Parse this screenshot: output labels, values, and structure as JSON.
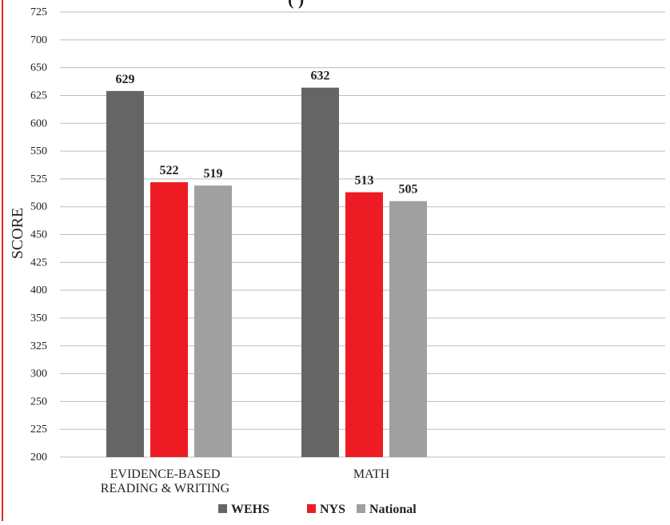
{
  "chart_data": {
    "type": "bar",
    "title_partial": "(                )",
    "ylabel": "SCORE",
    "xlabel": "",
    "y_tick_labels": [
      "200",
      "225",
      "250",
      "300",
      "325",
      "350",
      "400",
      "425",
      "450",
      "500",
      "525",
      "550",
      "600",
      "625",
      "650",
      "700",
      "725"
    ],
    "categories": [
      [
        "EVIDENCE-BASED",
        "READING & WRITING"
      ],
      [
        "MATH"
      ]
    ],
    "series": [
      {
        "name": "WEHS",
        "color": "#656565",
        "values": [
          629,
          632
        ]
      },
      {
        "name": "NYS",
        "color": "#ed1c24",
        "values": [
          522,
          513
        ]
      },
      {
        "name": "National",
        "color": "#a0a0a0",
        "values": [
          519,
          505
        ]
      }
    ],
    "grid": true,
    "legend_position": "bottom"
  }
}
